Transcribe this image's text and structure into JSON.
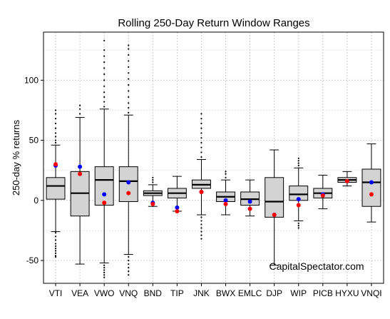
{
  "chart_data": {
    "type": "box",
    "title": "Rolling 250-Day Return Window Ranges",
    "xlabel": "",
    "ylabel": "250-day % returns",
    "ylim": [
      -69,
      140
    ],
    "yticks": [
      -50,
      0,
      50,
      100
    ],
    "grid": true,
    "watermark": "CapitalSpectator.com",
    "colors": {
      "box_fill": "#d3d3d3",
      "blue_marker": "#0000ff",
      "red_marker": "#ff0000"
    },
    "categories": [
      "VTI",
      "VEA",
      "VWO",
      "VNQ",
      "BND",
      "TIP",
      "JNK",
      "BWX",
      "EMLC",
      "DJP",
      "WIP",
      "PICB",
      "HYXU",
      "VNQI"
    ],
    "boxes": [
      {
        "category": "VTI",
        "whisker_low": -26,
        "q1": 1,
        "median": 12,
        "q3": 19,
        "whisker_high": 46,
        "blue": 29,
        "red": 30,
        "outliers_low": [
          -27,
          -30,
          -33,
          -36,
          -38,
          -40,
          -42,
          -44,
          -46,
          -47
        ],
        "outliers_high": [
          48,
          50,
          53,
          56,
          60,
          64,
          68,
          72,
          75
        ]
      },
      {
        "category": "VEA",
        "whisker_low": -53,
        "q1": -13,
        "median": 6,
        "q3": 24,
        "whisker_high": 69,
        "blue": 28,
        "red": 22,
        "outliers_low": [],
        "outliers_high": [
          72,
          76,
          79
        ]
      },
      {
        "category": "VWO",
        "whisker_low": -52,
        "q1": -4,
        "median": 17,
        "q3": 28,
        "whisker_high": 76,
        "blue": 5,
        "red": -2,
        "outliers_low": [
          -54,
          -56,
          -58,
          -60,
          -62,
          -64
        ],
        "outliers_high": [
          78,
          82,
          86,
          90,
          95,
          100,
          105,
          110,
          115,
          120,
          125,
          133
        ]
      },
      {
        "category": "VNQ",
        "whisker_low": -45,
        "q1": -1,
        "median": 16,
        "q3": 28,
        "whisker_high": 71,
        "blue": 15,
        "red": 6,
        "outliers_low": [
          -47,
          -50,
          -53,
          -56,
          -59,
          -62
        ],
        "outliers_high": [
          73,
          77,
          81,
          86,
          91,
          96,
          101,
          106,
          111,
          116,
          121,
          126,
          129
        ]
      },
      {
        "category": "BND",
        "whisker_low": -5,
        "q1": 4,
        "median": 6,
        "q3": 8,
        "whisker_high": 13,
        "blue": -2,
        "red": -3,
        "outliers_low": [],
        "outliers_high": [
          15,
          17,
          19
        ]
      },
      {
        "category": "TIP",
        "whisker_low": -9,
        "q1": 2,
        "median": 6,
        "q3": 10,
        "whisker_high": 20,
        "blue": -6,
        "red": -9,
        "outliers_low": [],
        "outliers_high": []
      },
      {
        "category": "JNK",
        "whisker_low": -12,
        "q1": 10,
        "median": 13,
        "q3": 17,
        "whisker_high": 34,
        "blue": 7,
        "red": 7,
        "outliers_low": [
          -14,
          -17,
          -20,
          -23,
          -26,
          -29,
          -32
        ],
        "outliers_high": [
          36,
          40,
          44,
          48,
          52,
          56,
          60,
          64,
          68,
          72
        ]
      },
      {
        "category": "BWX",
        "whisker_low": -12,
        "q1": -1,
        "median": 3,
        "q3": 7,
        "whisker_high": 17,
        "blue": 0,
        "red": -3,
        "outliers_low": [],
        "outliers_high": [
          19,
          22,
          24
        ]
      },
      {
        "category": "EMLC",
        "whisker_low": -13,
        "q1": -4,
        "median": 1,
        "q3": 7,
        "whisker_high": 17,
        "blue": -1,
        "red": -7,
        "outliers_low": [],
        "outliers_high": []
      },
      {
        "category": "DJP",
        "whisker_low": -54,
        "q1": -14,
        "median": -1,
        "q3": 19,
        "whisker_high": 42,
        "blue": -12,
        "red": -12,
        "outliers_low": [],
        "outliers_high": []
      },
      {
        "category": "WIP",
        "whisker_low": -17,
        "q1": 0,
        "median": 5,
        "q3": 12,
        "whisker_high": 27,
        "blue": 1,
        "red": -4,
        "outliers_low": [
          -19,
          -21,
          -23
        ],
        "outliers_high": [
          29,
          31,
          33,
          35
        ]
      },
      {
        "category": "PICB",
        "whisker_low": -7,
        "q1": 2,
        "median": 6,
        "q3": 10,
        "whisker_high": 21,
        "blue": 5,
        "red": 4,
        "outliers_low": [],
        "outliers_high": []
      },
      {
        "category": "HYXU",
        "whisker_low": 12,
        "q1": 15,
        "median": 17,
        "q3": 19,
        "whisker_high": 24,
        "blue": 16,
        "red": 16,
        "outliers_low": [],
        "outliers_high": []
      },
      {
        "category": "VNQI",
        "whisker_low": -18,
        "q1": -5,
        "median": 15,
        "q3": 26,
        "whisker_high": 47,
        "blue": 15,
        "red": 5,
        "outliers_low": [],
        "outliers_high": []
      }
    ]
  }
}
